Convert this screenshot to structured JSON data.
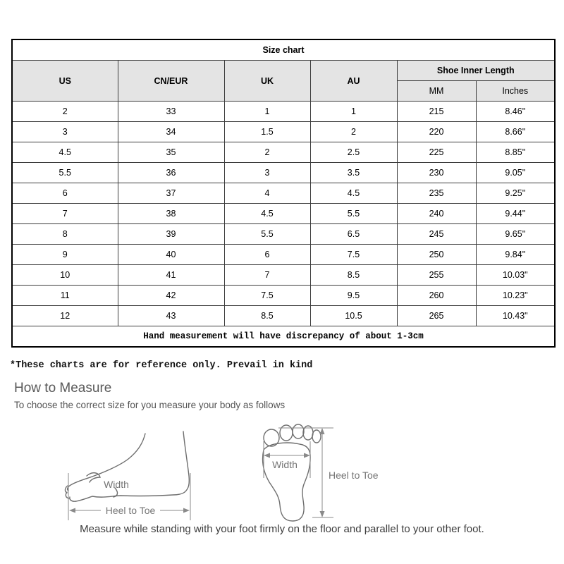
{
  "size_table": {
    "title": "Size chart",
    "columns": [
      "US",
      "CN/EUR",
      "UK",
      "AU"
    ],
    "span_header": "Shoe Inner Length",
    "sub_columns": [
      "MM",
      "Inches"
    ],
    "rows": [
      [
        "2",
        "33",
        "1",
        "1",
        "215",
        "8.46\""
      ],
      [
        "3",
        "34",
        "1.5",
        "2",
        "220",
        "8.66\""
      ],
      [
        "4.5",
        "35",
        "2",
        "2.5",
        "225",
        "8.85\""
      ],
      [
        "5.5",
        "36",
        "3",
        "3.5",
        "230",
        "9.05\""
      ],
      [
        "6",
        "37",
        "4",
        "4.5",
        "235",
        "9.25\""
      ],
      [
        "7",
        "38",
        "4.5",
        "5.5",
        "240",
        "9.44\""
      ],
      [
        "8",
        "39",
        "5.5",
        "6.5",
        "245",
        "9.65\""
      ],
      [
        "9",
        "40",
        "6",
        "7.5",
        "250",
        "9.84\""
      ],
      [
        "10",
        "41",
        "7",
        "8.5",
        "255",
        "10.03\""
      ],
      [
        "11",
        "42",
        "7.5",
        "9.5",
        "260",
        "10.23\""
      ],
      [
        "12",
        "43",
        "8.5",
        "10.5",
        "265",
        "10.43\""
      ]
    ],
    "note": "Hand measurement will have discrepancy of about 1-3cm"
  },
  "reference_note": "*These charts are for reference only. Prevail in kind",
  "how_to_measure": {
    "heading": "How to Measure",
    "intro": "To choose the correct size for you measure your body as follows",
    "side_diagram": {
      "width_label": "Width",
      "length_label": "Heel to Toe"
    },
    "top_diagram": {
      "width_label": "Width",
      "length_label": "Heel to Toe"
    },
    "caption": "Measure while standing with your foot firmly on the floor and parallel to your other foot."
  },
  "colors": {
    "header_bg": "#e4e4e4",
    "table_border": "#000000",
    "diagram_stroke": "#6e6e6e",
    "diagram_label": "#757575",
    "muted_text": "#595959"
  }
}
